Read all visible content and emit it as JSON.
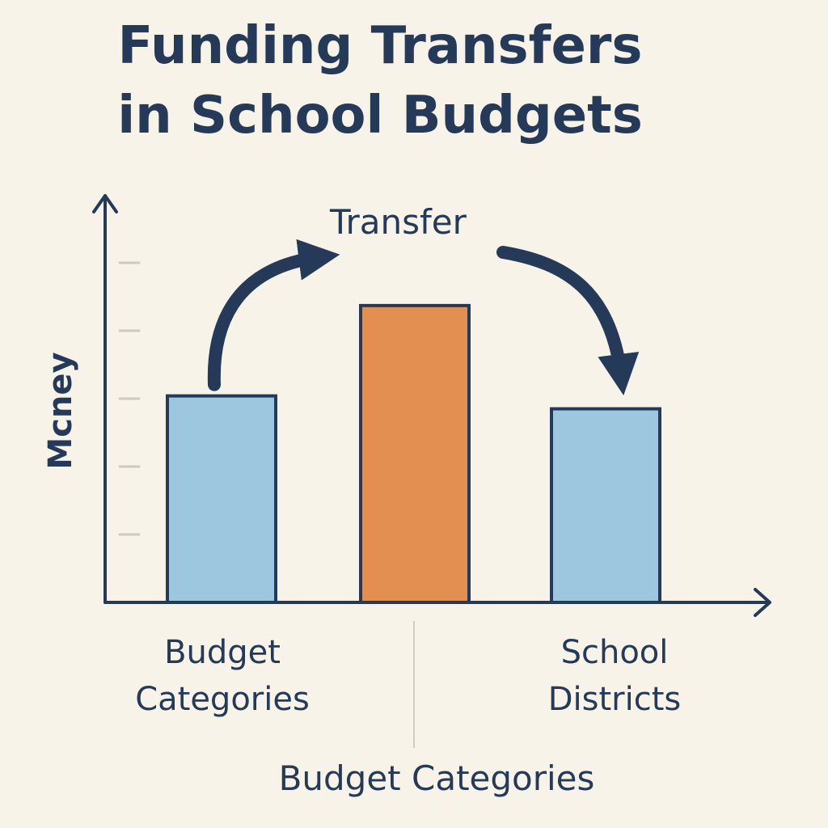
{
  "chart_data": {
    "type": "bar",
    "title_lines": [
      "Funding Transfers",
      "in School Budgets"
    ],
    "ylabel": "Mcney",
    "xlabel": "Budget Categories",
    "categories": [
      "Budget Categories",
      "",
      "School Districts"
    ],
    "category_labels": [
      [
        "Budget",
        "Categories"
      ],
      [
        "School",
        "Districts"
      ]
    ],
    "values": [
      3.2,
      4.6,
      3.0
    ],
    "ylim": [
      0,
      5.2
    ],
    "ytick_count": 5,
    "grid": false,
    "annotation": "Transfer",
    "colors": {
      "bar_blue": "#9cc7df",
      "bar_orange": "#e48f52",
      "outline": "#243a58",
      "background": "#f8f3e8",
      "tick": "#cfcabd"
    },
    "bar_colors": [
      "#9cc7df",
      "#e48f52",
      "#9cc7df"
    ]
  }
}
